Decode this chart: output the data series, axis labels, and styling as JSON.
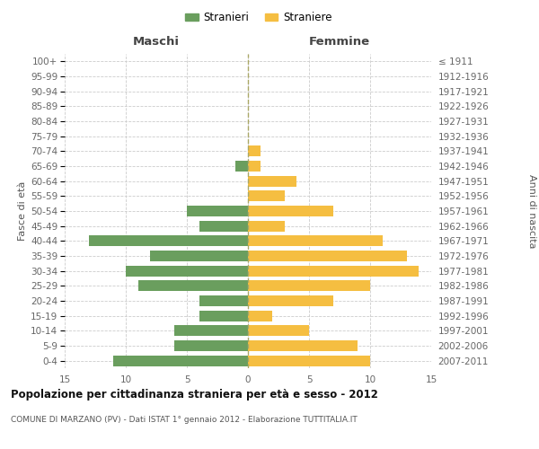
{
  "age_groups": [
    "100+",
    "95-99",
    "90-94",
    "85-89",
    "80-84",
    "75-79",
    "70-74",
    "65-69",
    "60-64",
    "55-59",
    "50-54",
    "45-49",
    "40-44",
    "35-39",
    "30-34",
    "25-29",
    "20-24",
    "15-19",
    "10-14",
    "5-9",
    "0-4"
  ],
  "birth_years": [
    "≤ 1911",
    "1912-1916",
    "1917-1921",
    "1922-1926",
    "1927-1931",
    "1932-1936",
    "1937-1941",
    "1942-1946",
    "1947-1951",
    "1952-1956",
    "1957-1961",
    "1962-1966",
    "1967-1971",
    "1972-1976",
    "1977-1981",
    "1982-1986",
    "1987-1991",
    "1992-1996",
    "1997-2001",
    "2002-2006",
    "2007-2011"
  ],
  "maschi": [
    0,
    0,
    0,
    0,
    0,
    0,
    0,
    1,
    0,
    0,
    5,
    4,
    13,
    8,
    10,
    9,
    4,
    4,
    6,
    6,
    11
  ],
  "femmine": [
    0,
    0,
    0,
    0,
    0,
    0,
    1,
    1,
    4,
    3,
    7,
    3,
    11,
    13,
    14,
    10,
    7,
    2,
    5,
    9,
    10
  ],
  "maschi_color": "#6a9e5e",
  "femmine_color": "#f5be41",
  "grid_color": "#cccccc",
  "center_line_color": "#aaa866",
  "title": "Popolazione per cittadinanza straniera per età e sesso - 2012",
  "subtitle": "COMUNE DI MARZANO (PV) - Dati ISTAT 1° gennaio 2012 - Elaborazione TUTTITALIA.IT",
  "label_maschi": "Maschi",
  "label_femmine": "Femmine",
  "ylabel_left": "Fasce di età",
  "ylabel_right": "Anni di nascita",
  "legend_maschi": "Stranieri",
  "legend_femmine": "Straniere",
  "xlim": 15
}
